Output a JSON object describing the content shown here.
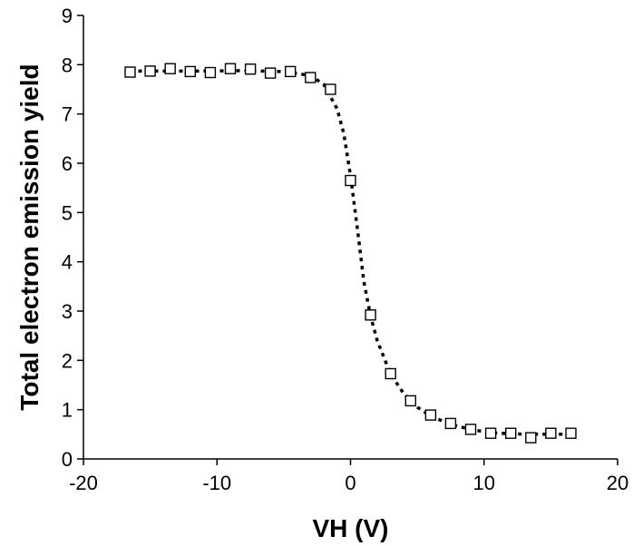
{
  "chart_data": {
    "type": "scatter",
    "title": "",
    "xlabel": "VH (V)",
    "ylabel": "Total electron emission yield",
    "xlim": [
      -20,
      20
    ],
    "ylim": [
      0,
      9
    ],
    "x_ticks": [
      -20,
      -10,
      0,
      10,
      20
    ],
    "y_ticks": [
      0,
      1,
      2,
      3,
      4,
      5,
      6,
      7,
      8,
      9
    ],
    "grid": false,
    "legend": "none",
    "marker": "open-square",
    "colors": {
      "axis": "#000000",
      "marker_stroke": "#000000",
      "marker_fill": "#ffffff",
      "fit_line": "#000000"
    },
    "series": [
      {
        "points": [
          {
            "x": -16.5,
            "y": 7.85
          },
          {
            "x": -15.0,
            "y": 7.87
          },
          {
            "x": -13.5,
            "y": 7.92
          },
          {
            "x": -12.0,
            "y": 7.86
          },
          {
            "x": -10.5,
            "y": 7.84
          },
          {
            "x": -9.0,
            "y": 7.92
          },
          {
            "x": -7.5,
            "y": 7.91
          },
          {
            "x": -6.0,
            "y": 7.83
          },
          {
            "x": -4.5,
            "y": 7.86
          },
          {
            "x": -3.0,
            "y": 7.74
          },
          {
            "x": -1.5,
            "y": 7.5
          },
          {
            "x": 0.0,
            "y": 5.65
          },
          {
            "x": 1.5,
            "y": 2.92
          },
          {
            "x": 3.0,
            "y": 1.73
          },
          {
            "x": 4.5,
            "y": 1.18
          },
          {
            "x": 6.0,
            "y": 0.89
          },
          {
            "x": 7.5,
            "y": 0.72
          },
          {
            "x": 9.0,
            "y": 0.6
          },
          {
            "x": 10.5,
            "y": 0.52
          },
          {
            "x": 12.0,
            "y": 0.52
          },
          {
            "x": 13.5,
            "y": 0.43
          },
          {
            "x": 15.0,
            "y": 0.52
          },
          {
            "x": 16.5,
            "y": 0.52
          }
        ]
      }
    ],
    "fit_curve": {
      "style": "dotted",
      "points": [
        {
          "x": -16.5,
          "y": 7.87
        },
        {
          "x": -12.0,
          "y": 7.87
        },
        {
          "x": -8.0,
          "y": 7.88
        },
        {
          "x": -5.0,
          "y": 7.86
        },
        {
          "x": -3.0,
          "y": 7.78
        },
        {
          "x": -2.0,
          "y": 7.6
        },
        {
          "x": -1.0,
          "y": 7.1
        },
        {
          "x": -0.5,
          "y": 6.6
        },
        {
          "x": 0.0,
          "y": 5.75
        },
        {
          "x": 0.5,
          "y": 4.7
        },
        {
          "x": 1.0,
          "y": 3.6
        },
        {
          "x": 1.5,
          "y": 2.9
        },
        {
          "x": 2.0,
          "y": 2.4
        },
        {
          "x": 3.0,
          "y": 1.72
        },
        {
          "x": 4.0,
          "y": 1.32
        },
        {
          "x": 5.0,
          "y": 1.05
        },
        {
          "x": 6.0,
          "y": 0.87
        },
        {
          "x": 7.5,
          "y": 0.7
        },
        {
          "x": 9.0,
          "y": 0.6
        },
        {
          "x": 10.5,
          "y": 0.53
        },
        {
          "x": 12.0,
          "y": 0.51
        },
        {
          "x": 13.5,
          "y": 0.5
        },
        {
          "x": 16.5,
          "y": 0.5
        }
      ]
    }
  }
}
